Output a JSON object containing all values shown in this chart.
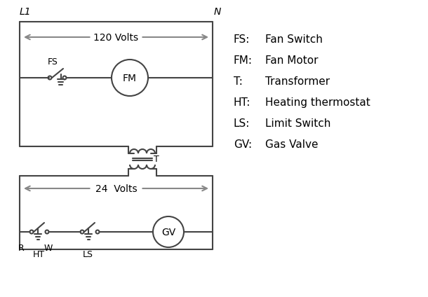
{
  "background_color": "#ffffff",
  "line_color": "#444444",
  "arrow_color": "#888888",
  "text_color": "#000000",
  "legend_items": [
    [
      "FS:",
      "Fan Switch"
    ],
    [
      "FM:",
      "Fan Motor"
    ],
    [
      "T:",
      "Transformer"
    ],
    [
      "HT:",
      "Heating thermostat"
    ],
    [
      "LS:",
      "Limit Switch"
    ],
    [
      "GV:",
      "Gas Valve"
    ]
  ],
  "label_L1": "L1",
  "label_N": "N",
  "label_120V": "120 Volts",
  "label_24V": "24  Volts",
  "label_T": "T",
  "label_FS": "FS",
  "label_FM": "FM",
  "label_GV": "GV",
  "label_R": "R",
  "label_W": "W",
  "label_HT": "HT",
  "label_LS": "LS"
}
